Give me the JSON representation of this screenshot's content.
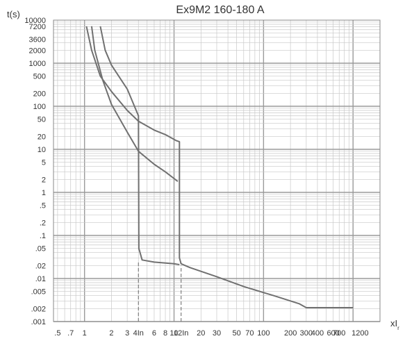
{
  "chart_data": {
    "type": "line",
    "title": "Ex9M2 160-180 A",
    "xlabel": "xI",
    "xlabel_sub": "r",
    "ylabel": "t(s)",
    "x_scale": "log",
    "y_scale": "log",
    "xlim": [
      0.45,
      2000
    ],
    "ylim": [
      0.001,
      10000
    ],
    "grid": true,
    "x_ticks": [
      {
        "v": 0.5,
        "label": ".5"
      },
      {
        "v": 0.7,
        "label": ".7"
      },
      {
        "v": 1,
        "label": "1"
      },
      {
        "v": 2,
        "label": "2"
      },
      {
        "v": 3,
        "label": "3"
      },
      {
        "v": 4,
        "label": "4In"
      },
      {
        "v": 6,
        "label": "6"
      },
      {
        "v": 8,
        "label": "8"
      },
      {
        "v": 10,
        "label": "10"
      },
      {
        "v": 12,
        "label": "12In"
      },
      {
        "v": 20,
        "label": "20"
      },
      {
        "v": 30,
        "label": "30"
      },
      {
        "v": 50,
        "label": "50"
      },
      {
        "v": 70,
        "label": "70"
      },
      {
        "v": 100,
        "label": "100"
      },
      {
        "v": 200,
        "label": "200"
      },
      {
        "v": 300,
        "label": "300"
      },
      {
        "v": 400,
        "label": "400"
      },
      {
        "v": 600,
        "label": "600"
      },
      {
        "v": 700,
        "label": "700"
      },
      {
        "v": 1200,
        "label": "1200"
      }
    ],
    "y_ticks": [
      {
        "v": 10000,
        "label": "10000"
      },
      {
        "v": 7200,
        "label": "7200"
      },
      {
        "v": 3600,
        "label": "3600"
      },
      {
        "v": 2000,
        "label": "2000"
      },
      {
        "v": 1000,
        "label": "1000"
      },
      {
        "v": 500,
        "label": "500"
      },
      {
        "v": 200,
        "label": "200"
      },
      {
        "v": 100,
        "label": "100"
      },
      {
        "v": 50,
        "label": "50"
      },
      {
        "v": 20,
        "label": "20"
      },
      {
        "v": 10,
        "label": "10"
      },
      {
        "v": 5,
        "label": "5"
      },
      {
        "v": 2,
        "label": "2"
      },
      {
        "v": 1,
        "label": "1"
      },
      {
        "v": 0.5,
        "label": ".5"
      },
      {
        "v": 0.2,
        "label": ".2"
      },
      {
        "v": 0.1,
        "label": ".1"
      },
      {
        "v": 0.05,
        "label": ".05"
      },
      {
        "v": 0.02,
        "label": ".02"
      },
      {
        "v": 0.01,
        "label": ".01"
      },
      {
        "v": 0.005,
        "label": ".005"
      },
      {
        "v": 0.002,
        "label": ".002"
      },
      {
        "v": 0.001,
        "label": ".001"
      }
    ],
    "series": [
      {
        "points": [
          [
            1.05,
            7200
          ],
          [
            1.2,
            2000
          ],
          [
            1.5,
            500
          ],
          [
            2,
            220
          ],
          [
            3,
            80
          ],
          [
            4,
            45
          ],
          [
            6,
            28
          ],
          [
            8,
            22
          ],
          [
            10.5,
            16
          ],
          [
            11.5,
            15
          ],
          [
            11.5,
            0.03
          ],
          [
            12,
            0.022
          ],
          [
            15,
            0.018
          ],
          [
            30,
            0.011
          ],
          [
            60,
            0.0065
          ],
          [
            130,
            0.004
          ],
          [
            250,
            0.0026
          ],
          [
            300,
            0.0021
          ],
          [
            1000,
            0.0021
          ]
        ]
      },
      {
        "points": [
          [
            1.5,
            7200
          ],
          [
            1.7,
            2000
          ],
          [
            2,
            900
          ],
          [
            3,
            250
          ],
          [
            4,
            60
          ],
          [
            4.05,
            0.05
          ],
          [
            4.4,
            0.027
          ],
          [
            6,
            0.024
          ],
          [
            10,
            0.022
          ],
          [
            11.5,
            0.021
          ]
        ]
      },
      {
        "points": [
          [
            1.2,
            7200
          ],
          [
            1.3,
            2000
          ],
          [
            1.6,
            400
          ],
          [
            2,
            110
          ],
          [
            3,
            25
          ],
          [
            4,
            9
          ],
          [
            6,
            4.5
          ],
          [
            8,
            3
          ],
          [
            11,
            1.8
          ]
        ]
      }
    ],
    "reference_lines": [
      {
        "x": 4,
        "y_from": 0.001,
        "y_to": 0.025
      },
      {
        "x": 12,
        "y_from": 0.001,
        "y_to": 0.02
      }
    ]
  }
}
